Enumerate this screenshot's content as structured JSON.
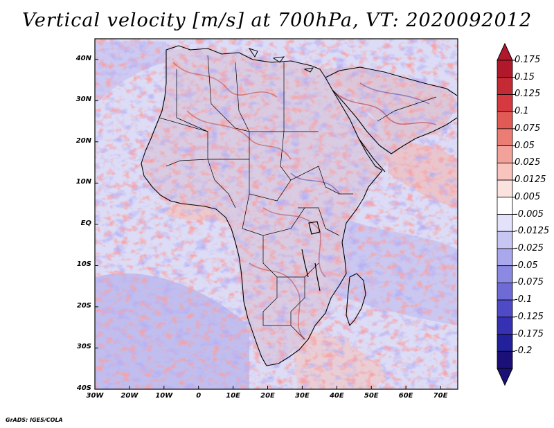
{
  "title": "Vertical velocity [m/s] at 700hPa, VT: 2020092012",
  "map": {
    "latitude_labels": [
      "40N",
      "30N",
      "20N",
      "10N",
      "EQ",
      "10S",
      "20S",
      "30S",
      "40S"
    ],
    "longitude_labels": [
      "30W",
      "20W",
      "10W",
      "0",
      "10E",
      "20E",
      "30E",
      "40E",
      "50E",
      "60E",
      "70E"
    ],
    "extent": {
      "lon_min": -30,
      "lon_max": 75,
      "lat_min": -40,
      "lat_max": 45
    }
  },
  "colorbar": {
    "labels": [
      "0.175",
      "0.15",
      "0.125",
      "0.1",
      "0.075",
      "0.05",
      "0.025",
      "0.0125",
      "0.005",
      "-0.005",
      "-0.0125",
      "-0.025",
      "-0.05",
      "-0.075",
      "-0.1",
      "-0.125",
      "-0.175",
      "-0.2"
    ],
    "colors": [
      "#b2182b",
      "#c42a33",
      "#d6393f",
      "#e25a55",
      "#ec7d75",
      "#f3a29b",
      "#f8c4bd",
      "#fce2de",
      "#ffffff",
      "#e3e2fa",
      "#c7c6f3",
      "#aaa8ec",
      "#8c89e2",
      "#6e6ad6",
      "#4f4ac6",
      "#3631b2",
      "#22209a",
      "#1a1078"
    ]
  },
  "footer": "GrADS: IGES/COLA"
}
